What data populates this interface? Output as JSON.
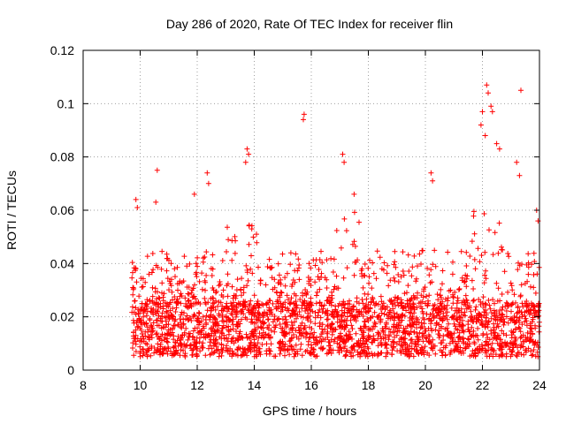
{
  "chart_data": {
    "type": "scatter",
    "title": "Day 286 of 2020, Rate Of TEC Index for receiver flin",
    "xlabel": "GPS time / hours",
    "ylabel": "ROTI / TECUs",
    "xlim": [
      8,
      24
    ],
    "ylim": [
      0,
      0.12
    ],
    "x_ticks": [
      "8",
      "10",
      "12",
      "14",
      "16",
      "18",
      "20",
      "22",
      "24"
    ],
    "y_ticks": [
      "0",
      "0.02",
      "0.04",
      "0.06",
      "0.08",
      "0.1",
      "0.12"
    ],
    "grid": true,
    "marker": "+",
    "color": "#ff0000",
    "data_x_range": [
      9.7,
      24.0
    ],
    "typical_band": [
      0.005,
      0.025
    ],
    "notable_points": [
      {
        "x": 9.85,
        "y": 0.064
      },
      {
        "x": 9.9,
        "y": 0.061
      },
      {
        "x": 10.6,
        "y": 0.075
      },
      {
        "x": 10.55,
        "y": 0.063
      },
      {
        "x": 11.9,
        "y": 0.066
      },
      {
        "x": 12.35,
        "y": 0.074
      },
      {
        "x": 12.4,
        "y": 0.07
      },
      {
        "x": 13.75,
        "y": 0.083
      },
      {
        "x": 13.8,
        "y": 0.081
      },
      {
        "x": 13.7,
        "y": 0.078
      },
      {
        "x": 15.75,
        "y": 0.096
      },
      {
        "x": 15.72,
        "y": 0.094
      },
      {
        "x": 17.1,
        "y": 0.081
      },
      {
        "x": 17.15,
        "y": 0.078
      },
      {
        "x": 17.5,
        "y": 0.066
      },
      {
        "x": 20.2,
        "y": 0.074
      },
      {
        "x": 20.25,
        "y": 0.071
      },
      {
        "x": 21.95,
        "y": 0.092
      },
      {
        "x": 22.0,
        "y": 0.097
      },
      {
        "x": 22.15,
        "y": 0.107
      },
      {
        "x": 22.2,
        "y": 0.104
      },
      {
        "x": 22.3,
        "y": 0.099
      },
      {
        "x": 22.35,
        "y": 0.097
      },
      {
        "x": 22.1,
        "y": 0.088
      },
      {
        "x": 22.5,
        "y": 0.085
      },
      {
        "x": 22.6,
        "y": 0.083
      },
      {
        "x": 23.35,
        "y": 0.105
      },
      {
        "x": 23.2,
        "y": 0.078
      },
      {
        "x": 23.3,
        "y": 0.073
      },
      {
        "x": 23.9,
        "y": 0.06
      },
      {
        "x": 23.95,
        "y": 0.056
      }
    ]
  }
}
